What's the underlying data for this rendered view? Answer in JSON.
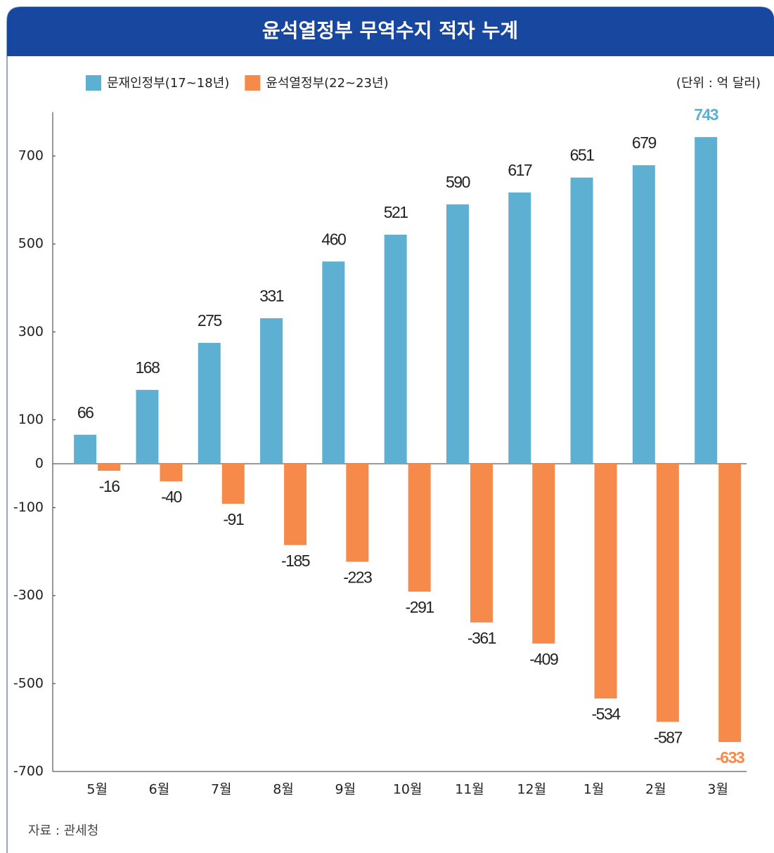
{
  "chart_data": {
    "type": "bar",
    "title": "윤석열정부 무역수지 적자 누계",
    "unit": "(단위 : 억 달러)",
    "source": "자료 : 관세청",
    "categories": [
      "5월",
      "6월",
      "7월",
      "8월",
      "9월",
      "10월",
      "11월",
      "12월",
      "1월",
      "2월",
      "3월"
    ],
    "series": [
      {
        "name": "문재인정부(17~18년)",
        "color": "#5eb0d3",
        "values": [
          66,
          168,
          275,
          331,
          460,
          521,
          590,
          617,
          651,
          679,
          743
        ]
      },
      {
        "name": "윤석열정부(22~23년)",
        "color": "#f58a4b",
        "values": [
          -16,
          -40,
          -91,
          -185,
          -223,
          -291,
          -361,
          -409,
          -534,
          -587,
          -633
        ]
      }
    ],
    "ylim": [
      -700,
      800
    ],
    "yticks": [
      -700,
      -500,
      -300,
      -100,
      0,
      100,
      300,
      500,
      700
    ]
  }
}
